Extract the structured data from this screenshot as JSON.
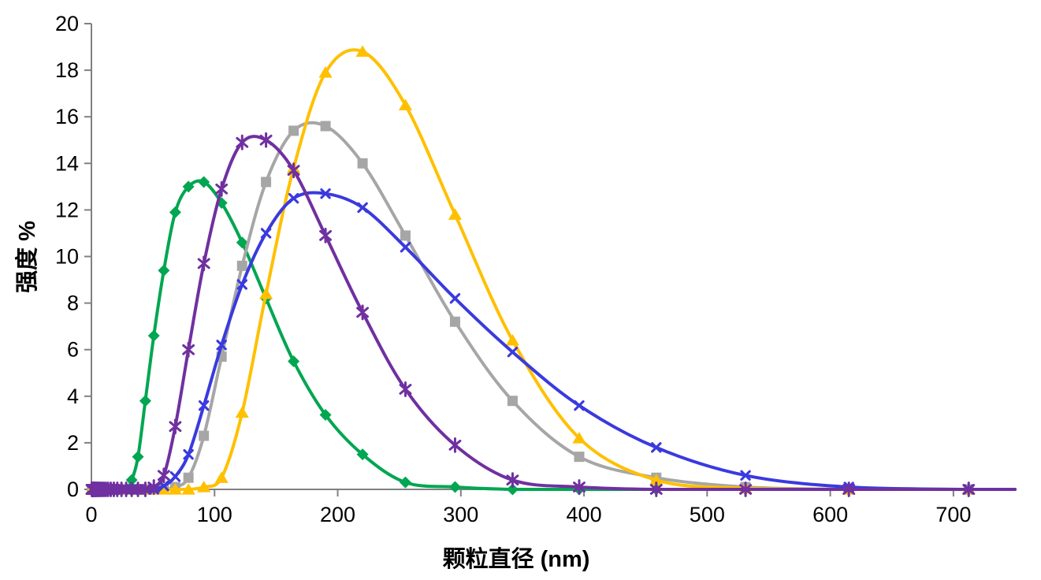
{
  "chart_data": {
    "type": "line",
    "title": "",
    "xlabel": "颗粒直径 (nm)",
    "ylabel": "强度 %",
    "xlim": [
      0,
      750
    ],
    "ylim": [
      0,
      20
    ],
    "x_ticks": [
      0,
      100,
      200,
      300,
      400,
      500,
      600,
      700
    ],
    "y_ticks": [
      0,
      2,
      4,
      6,
      8,
      10,
      12,
      14,
      16,
      18,
      20
    ],
    "grid": false,
    "legend_position": "none",
    "axis_color": "#808080",
    "smooth_lines": true,
    "x": [
      0.4,
      0.46,
      0.54,
      0.62,
      0.72,
      0.83,
      0.96,
      1.12,
      1.29,
      1.5,
      1.74,
      2.01,
      2.33,
      2.7,
      3.12,
      3.62,
      4.19,
      4.85,
      5.61,
      6.5,
      7.53,
      8.72,
      10.1,
      11.7,
      13.5,
      15.7,
      18.2,
      21.0,
      24.4,
      28.2,
      32.7,
      37.8,
      43.8,
      50.7,
      58.8,
      68.1,
      78.8,
      91.3,
      105.7,
      122.4,
      141.8,
      164.2,
      190.1,
      220.2,
      255.0,
      295.3,
      342.0,
      396.1,
      458.7,
      531.2,
      615.1,
      712.4
    ],
    "series": [
      {
        "name": "green-series",
        "marker": "diamond",
        "color": "#00A651",
        "peak": {
          "x": 91.3,
          "y": 13.2
        },
        "values": [
          0,
          0,
          0,
          0,
          0,
          0,
          0,
          0,
          0,
          0,
          0,
          0,
          0,
          0,
          0,
          0,
          0,
          0,
          0,
          0,
          0,
          0,
          0,
          0,
          0,
          0,
          0,
          0,
          0,
          0,
          0.4,
          1.4,
          3.8,
          6.6,
          9.4,
          11.9,
          13.0,
          13.2,
          12.3,
          10.6,
          8.2,
          5.5,
          3.2,
          1.5,
          0.3,
          0.1,
          0,
          0,
          0,
          0,
          0,
          0
        ]
      },
      {
        "name": "gray-series",
        "marker": "square",
        "color": "#A6A6A6",
        "peak": {
          "x": 190.1,
          "y": 15.6
        },
        "values": [
          0,
          0,
          0,
          0,
          0,
          0,
          0,
          0,
          0,
          0,
          0,
          0,
          0,
          0,
          0,
          0,
          0,
          0,
          0,
          0,
          0,
          0,
          0,
          0,
          0,
          0,
          0,
          0,
          0,
          0,
          0,
          0,
          0,
          0,
          0,
          0.1,
          0.5,
          2.3,
          5.7,
          9.6,
          13.2,
          15.4,
          15.6,
          14.0,
          10.9,
          7.2,
          3.8,
          1.4,
          0.5,
          0.1,
          0,
          0
        ]
      },
      {
        "name": "yellow-series",
        "marker": "triangle",
        "color": "#FFC000",
        "peak": {
          "x": 220.2,
          "y": 18.8
        },
        "values": [
          0,
          0,
          0,
          0,
          0,
          0,
          0,
          0,
          0,
          0,
          0,
          0,
          0,
          0,
          0,
          0,
          0,
          0,
          0,
          0,
          0,
          0,
          0,
          0,
          0,
          0,
          0,
          0,
          0,
          0,
          0,
          0,
          0,
          0,
          0,
          0,
          0,
          0.1,
          0.5,
          3.3,
          8.4,
          13.8,
          17.9,
          18.8,
          16.5,
          11.8,
          6.4,
          2.2,
          0.4,
          0.05,
          0,
          0
        ]
      },
      {
        "name": "blue-series",
        "marker": "x-cross",
        "color": "#3A3ADE",
        "peak": {
          "x": 190.1,
          "y": 12.7
        },
        "values": [
          0,
          0,
          0,
          0,
          0,
          0,
          0,
          0,
          0,
          0,
          0,
          0,
          0,
          0,
          0,
          0,
          0,
          0,
          0,
          0,
          0,
          0,
          0,
          0,
          0,
          0,
          0,
          0,
          0,
          0,
          0,
          0,
          0,
          0,
          0.15,
          0.55,
          1.5,
          3.6,
          6.2,
          8.8,
          11.0,
          12.5,
          12.7,
          12.1,
          10.4,
          8.2,
          5.9,
          3.6,
          1.8,
          0.6,
          0.1,
          0
        ]
      },
      {
        "name": "purple-series",
        "marker": "asterisk",
        "color": "#7030A0",
        "peak": {
          "x": 141.8,
          "y": 15.0
        },
        "values": [
          0,
          0,
          0,
          0,
          0,
          0,
          0,
          0,
          0,
          0,
          0,
          0,
          0,
          0,
          0,
          0,
          0,
          0,
          0,
          0,
          0,
          0,
          0,
          0,
          0,
          0,
          0,
          0,
          0,
          0,
          0,
          0,
          0,
          0.1,
          0.6,
          2.7,
          6.0,
          9.7,
          12.9,
          14.9,
          15.0,
          13.7,
          10.9,
          7.6,
          4.3,
          1.9,
          0.4,
          0.1,
          0,
          0,
          0,
          0
        ]
      }
    ]
  }
}
